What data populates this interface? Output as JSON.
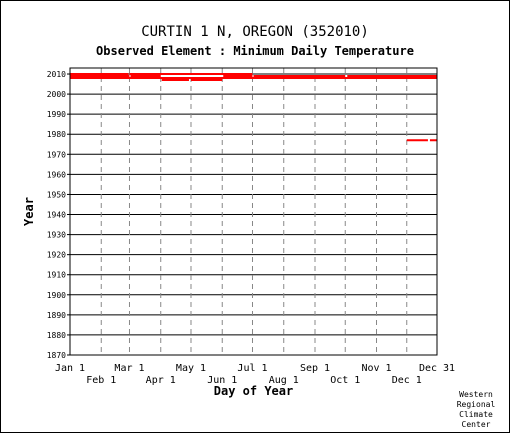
{
  "title": "CURTIN 1 N, OREGON   (352010)",
  "subtitle": "Observed Element : Minimum Daily Temperature",
  "credit": [
    "Western",
    "Regional",
    "Climate",
    "Center"
  ],
  "chart_data": {
    "type": "scatter",
    "xlabel": "Day of Year",
    "ylabel": "Year",
    "xlim": [
      1,
      365
    ],
    "ylim": [
      1870,
      2013
    ],
    "yticks": [
      1870,
      1880,
      1890,
      1900,
      1910,
      1920,
      1930,
      1940,
      1950,
      1960,
      1970,
      1980,
      1990,
      2000,
      2010
    ],
    "xticks_top": [
      {
        "label": "Jan 1",
        "day": 1
      },
      {
        "label": "Mar 1",
        "day": 60
      },
      {
        "label": "May 1",
        "day": 121
      },
      {
        "label": "Jul 1",
        "day": 182
      },
      {
        "label": "Sep 1",
        "day": 244
      },
      {
        "label": "Nov 1",
        "day": 305
      },
      {
        "label": "Dec 31",
        "day": 365
      }
    ],
    "xticks_bottom": [
      {
        "label": "Feb 1",
        "day": 32
      },
      {
        "label": "Apr 1",
        "day": 91
      },
      {
        "label": "Jun 1",
        "day": 152
      },
      {
        "label": "Aug 1",
        "day": 213
      },
      {
        "label": "Oct 1",
        "day": 274
      },
      {
        "label": "Dec 1",
        "day": 335
      }
    ],
    "grid": true,
    "color": "#ff0000",
    "series": [
      {
        "year": 1977,
        "segments": [
          [
            335,
            356
          ],
          [
            358,
            365
          ]
        ]
      },
      {
        "year": 2007,
        "segments": [
          [
            92,
            119
          ],
          [
            121,
            152
          ]
        ]
      },
      {
        "year": 2008,
        "segments": [
          [
            1,
            365
          ]
        ]
      },
      {
        "year": 2009,
        "segments": [
          [
            1,
            60
          ],
          [
            61,
            91
          ],
          [
            153,
            182
          ],
          [
            183,
            274
          ],
          [
            276,
            365
          ]
        ]
      },
      {
        "year": 2010,
        "segments": [
          [
            1,
            59
          ],
          [
            60,
            182
          ]
        ]
      }
    ]
  }
}
